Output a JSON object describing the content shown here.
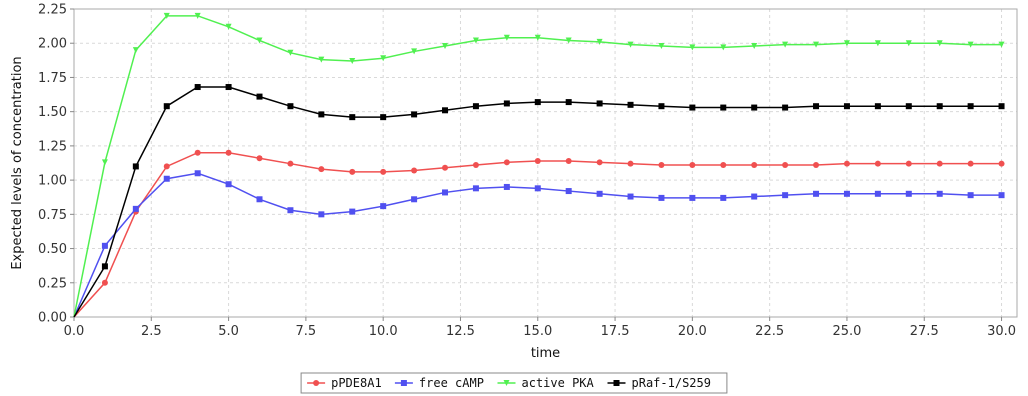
{
  "chart_data": {
    "type": "line",
    "title": "",
    "xlabel": "time",
    "ylabel": "Expected levels of concentration",
    "xlim": [
      0,
      30.5
    ],
    "ylim": [
      0,
      2.25
    ],
    "xticks": [
      0.0,
      2.5,
      5.0,
      7.5,
      10.0,
      12.5,
      15.0,
      17.5,
      20.0,
      22.5,
      25.0,
      27.5,
      30.0
    ],
    "yticks": [
      0.0,
      0.25,
      0.5,
      0.75,
      1.0,
      1.25,
      1.5,
      1.75,
      2.0,
      2.25
    ],
    "xtick_labels": [
      "0.0",
      "2.5",
      "5.0",
      "7.5",
      "10.0",
      "12.5",
      "15.0",
      "17.5",
      "20.0",
      "22.5",
      "25.0",
      "27.5",
      "30.0"
    ],
    "ytick_labels": [
      "0.00",
      "0.25",
      "0.50",
      "0.75",
      "1.00",
      "1.25",
      "1.50",
      "1.75",
      "2.00",
      "2.25"
    ],
    "grid": true,
    "legend_position": "bottom-center",
    "x": [
      0,
      1,
      2,
      3,
      4,
      5,
      6,
      7,
      8,
      9,
      10,
      11,
      12,
      13,
      14,
      15,
      16,
      17,
      18,
      19,
      20,
      21,
      22,
      23,
      24,
      25,
      26,
      27,
      28,
      29,
      30
    ],
    "series": [
      {
        "name": "pPDE8A1",
        "color": "#f05050",
        "marker": "circle",
        "values": [
          0.0,
          0.25,
          0.77,
          1.1,
          1.2,
          1.2,
          1.16,
          1.12,
          1.08,
          1.06,
          1.06,
          1.07,
          1.09,
          1.11,
          1.13,
          1.14,
          1.14,
          1.13,
          1.12,
          1.11,
          1.11,
          1.11,
          1.11,
          1.11,
          1.11,
          1.12,
          1.12,
          1.12,
          1.12,
          1.12,
          1.12
        ]
      },
      {
        "name": "free cAMP",
        "color": "#5050f0",
        "marker": "square",
        "values": [
          0.0,
          0.52,
          0.79,
          1.01,
          1.05,
          0.97,
          0.86,
          0.78,
          0.75,
          0.77,
          0.81,
          0.86,
          0.91,
          0.94,
          0.95,
          0.94,
          0.92,
          0.9,
          0.88,
          0.87,
          0.87,
          0.87,
          0.88,
          0.89,
          0.9,
          0.9,
          0.9,
          0.9,
          0.9,
          0.89,
          0.89
        ]
      },
      {
        "name": "active PKA",
        "color": "#50f050",
        "marker": "triangle-down",
        "values": [
          0.0,
          1.13,
          1.95,
          2.2,
          2.2,
          2.12,
          2.02,
          1.93,
          1.88,
          1.87,
          1.89,
          1.94,
          1.98,
          2.02,
          2.04,
          2.04,
          2.02,
          2.01,
          1.99,
          1.98,
          1.97,
          1.97,
          1.98,
          1.99,
          1.99,
          2.0,
          2.0,
          2.0,
          2.0,
          1.99,
          1.99
        ]
      },
      {
        "name": "pRaf-1/S259",
        "color": "#000000",
        "marker": "square",
        "values": [
          0.0,
          0.37,
          1.1,
          1.54,
          1.68,
          1.68,
          1.61,
          1.54,
          1.48,
          1.46,
          1.46,
          1.48,
          1.51,
          1.54,
          1.56,
          1.57,
          1.57,
          1.56,
          1.55,
          1.54,
          1.53,
          1.53,
          1.53,
          1.53,
          1.54,
          1.54,
          1.54,
          1.54,
          1.54,
          1.54,
          1.54
        ]
      }
    ]
  }
}
